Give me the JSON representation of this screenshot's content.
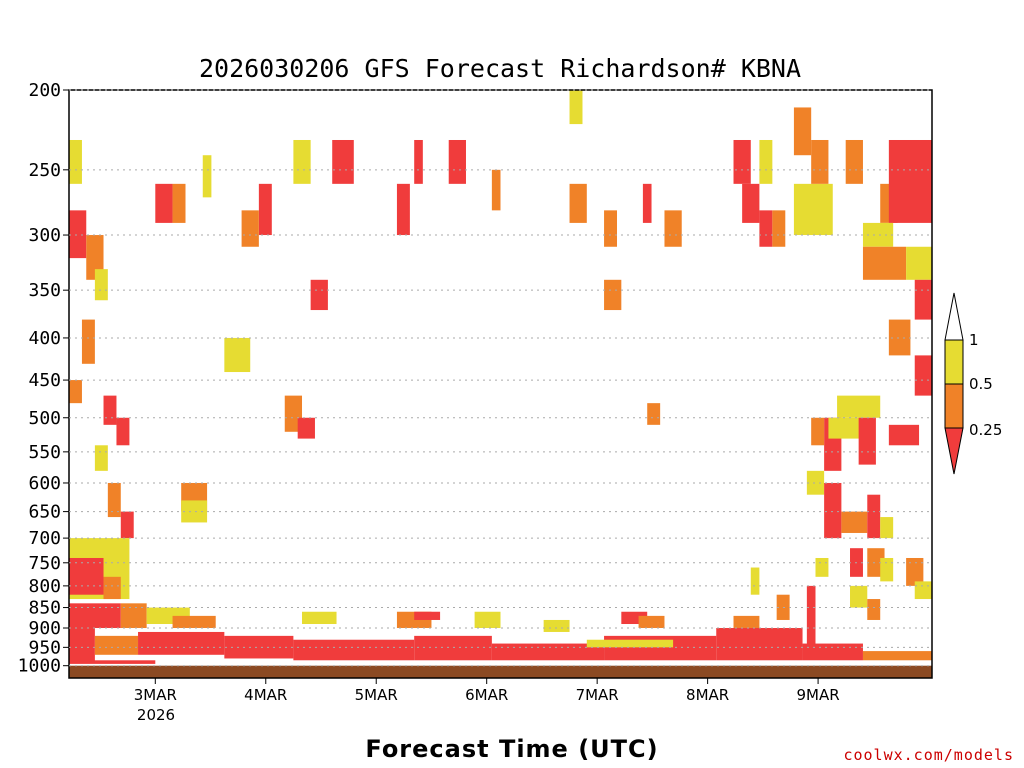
{
  "chart_data": {
    "type": "heatmap",
    "title": "2026030206 GFS Forecast Richardson# KBNA",
    "xlabel": "Forecast Time (UTC)",
    "ylabel": "",
    "y_scale": "log-pressure",
    "y_ticks": [
      "200",
      "250",
      "300",
      "350",
      "400",
      "450",
      "500",
      "550",
      "600",
      "650",
      "700",
      "750",
      "800",
      "850",
      "900",
      "950",
      "1000"
    ],
    "x_ticks": [
      "3MAR",
      "4MAR",
      "5MAR",
      "6MAR",
      "7MAR",
      "8MAR",
      "9MAR"
    ],
    "x_year_label": "2026",
    "levels": [
      "1",
      "0.5",
      "0.25"
    ],
    "colors": {
      "lt_0_25": "#f03c3c",
      "0_25_to_0_5": "#f08228",
      "0_5_to_1": "#e6dc32",
      "ground": "#8b4a23",
      "grid": "#aaaaaa"
    },
    "gridlines": "dotted",
    "legend_position": "right",
    "blocks": [
      {
        "x0": 0.0,
        "x1": 0.02,
        "p0": 280,
        "p1": 320,
        "cat": "lt_0_25"
      },
      {
        "x0": 0.0,
        "x1": 0.015,
        "p0": 230,
        "p1": 260,
        "cat": "0_5_to_1"
      },
      {
        "x0": 0.02,
        "x1": 0.04,
        "p0": 300,
        "p1": 340,
        "cat": "0_25_to_0_5"
      },
      {
        "x0": 0.03,
        "x1": 0.045,
        "p0": 330,
        "p1": 360,
        "cat": "0_5_to_1"
      },
      {
        "x0": 0.1,
        "x1": 0.12,
        "p0": 260,
        "p1": 290,
        "cat": "lt_0_25"
      },
      {
        "x0": 0.12,
        "x1": 0.135,
        "p0": 260,
        "p1": 290,
        "cat": "0_25_to_0_5"
      },
      {
        "x0": 0.155,
        "x1": 0.165,
        "p0": 240,
        "p1": 270,
        "cat": "0_5_to_1"
      },
      {
        "x0": 0.22,
        "x1": 0.235,
        "p0": 260,
        "p1": 300,
        "cat": "lt_0_25"
      },
      {
        "x0": 0.2,
        "x1": 0.22,
        "p0": 280,
        "p1": 310,
        "cat": "0_25_to_0_5"
      },
      {
        "x0": 0.26,
        "x1": 0.28,
        "p0": 230,
        "p1": 260,
        "cat": "0_5_to_1"
      },
      {
        "x0": 0.305,
        "x1": 0.33,
        "p0": 230,
        "p1": 260,
        "cat": "lt_0_25"
      },
      {
        "x0": 0.28,
        "x1": 0.3,
        "p0": 340,
        "p1": 370,
        "cat": "lt_0_25"
      },
      {
        "x0": 0.18,
        "x1": 0.21,
        "p0": 400,
        "p1": 440,
        "cat": "0_5_to_1"
      },
      {
        "x0": 0.25,
        "x1": 0.27,
        "p0": 470,
        "p1": 520,
        "cat": "0_25_to_0_5"
      },
      {
        "x0": 0.265,
        "x1": 0.285,
        "p0": 500,
        "p1": 530,
        "cat": "lt_0_25"
      },
      {
        "x0": 0.38,
        "x1": 0.395,
        "p0": 260,
        "p1": 300,
        "cat": "lt_0_25"
      },
      {
        "x0": 0.4,
        "x1": 0.41,
        "p0": 230,
        "p1": 260,
        "cat": "lt_0_25"
      },
      {
        "x0": 0.44,
        "x1": 0.46,
        "p0": 230,
        "p1": 260,
        "cat": "lt_0_25"
      },
      {
        "x0": 0.49,
        "x1": 0.5,
        "p0": 250,
        "p1": 280,
        "cat": "0_25_to_0_5"
      },
      {
        "x0": 0.58,
        "x1": 0.6,
        "p0": 260,
        "p1": 290,
        "cat": "0_25_to_0_5"
      },
      {
        "x0": 0.58,
        "x1": 0.595,
        "p0": 200,
        "p1": 220,
        "cat": "0_5_to_1"
      },
      {
        "x0": 0.62,
        "x1": 0.635,
        "p0": 280,
        "p1": 310,
        "cat": "0_25_to_0_5"
      },
      {
        "x0": 0.62,
        "x1": 0.64,
        "p0": 340,
        "p1": 370,
        "cat": "0_25_to_0_5"
      },
      {
        "x0": 0.665,
        "x1": 0.675,
        "p0": 260,
        "p1": 290,
        "cat": "lt_0_25"
      },
      {
        "x0": 0.69,
        "x1": 0.71,
        "p0": 280,
        "p1": 310,
        "cat": "0_25_to_0_5"
      },
      {
        "x0": 0.67,
        "x1": 0.685,
        "p0": 480,
        "p1": 510,
        "cat": "0_25_to_0_5"
      },
      {
        "x0": 0.77,
        "x1": 0.79,
        "p0": 230,
        "p1": 260,
        "cat": "lt_0_25"
      },
      {
        "x0": 0.78,
        "x1": 0.8,
        "p0": 260,
        "p1": 290,
        "cat": "lt_0_25"
      },
      {
        "x0": 0.8,
        "x1": 0.815,
        "p0": 280,
        "p1": 310,
        "cat": "lt_0_25"
      },
      {
        "x0": 0.815,
        "x1": 0.83,
        "p0": 280,
        "p1": 310,
        "cat": "0_25_to_0_5"
      },
      {
        "x0": 0.8,
        "x1": 0.815,
        "p0": 230,
        "p1": 260,
        "cat": "0_5_to_1"
      },
      {
        "x0": 0.84,
        "x1": 0.86,
        "p0": 210,
        "p1": 240,
        "cat": "0_25_to_0_5"
      },
      {
        "x0": 0.84,
        "x1": 0.885,
        "p0": 260,
        "p1": 300,
        "cat": "0_5_to_1"
      },
      {
        "x0": 0.86,
        "x1": 0.88,
        "p0": 230,
        "p1": 260,
        "cat": "0_25_to_0_5"
      },
      {
        "x0": 0.9,
        "x1": 0.92,
        "p0": 230,
        "p1": 260,
        "cat": "0_25_to_0_5"
      },
      {
        "x0": 0.94,
        "x1": 0.96,
        "p0": 260,
        "p1": 290,
        "cat": "0_25_to_0_5"
      },
      {
        "x0": 0.95,
        "x1": 1.0,
        "p0": 230,
        "p1": 290,
        "cat": "lt_0_25"
      },
      {
        "x0": 0.92,
        "x1": 0.955,
        "p0": 290,
        "p1": 310,
        "cat": "0_5_to_1"
      },
      {
        "x0": 0.92,
        "x1": 0.97,
        "p0": 310,
        "p1": 340,
        "cat": "0_25_to_0_5"
      },
      {
        "x0": 0.97,
        "x1": 1.0,
        "p0": 310,
        "p1": 340,
        "cat": "0_5_to_1"
      },
      {
        "x0": 0.98,
        "x1": 1.0,
        "p0": 340,
        "p1": 380,
        "cat": "lt_0_25"
      },
      {
        "x0": 0.95,
        "x1": 0.975,
        "p0": 380,
        "p1": 420,
        "cat": "0_25_to_0_5"
      },
      {
        "x0": 0.98,
        "x1": 1.0,
        "p0": 420,
        "p1": 470,
        "cat": "lt_0_25"
      },
      {
        "x0": 0.89,
        "x1": 0.94,
        "p0": 470,
        "p1": 500,
        "cat": "0_5_to_1"
      },
      {
        "x0": 0.95,
        "x1": 0.985,
        "p0": 510,
        "p1": 540,
        "cat": "lt_0_25"
      },
      {
        "x0": 0.875,
        "x1": 0.895,
        "p0": 500,
        "p1": 580,
        "cat": "lt_0_25"
      },
      {
        "x0": 0.88,
        "x1": 0.92,
        "p0": 500,
        "p1": 530,
        "cat": "0_5_to_1"
      },
      {
        "x0": 0.915,
        "x1": 0.935,
        "p0": 500,
        "p1": 570,
        "cat": "lt_0_25"
      },
      {
        "x0": 0.86,
        "x1": 0.875,
        "p0": 500,
        "p1": 540,
        "cat": "0_25_to_0_5"
      },
      {
        "x0": 0.855,
        "x1": 0.875,
        "p0": 580,
        "p1": 620,
        "cat": "0_5_to_1"
      },
      {
        "x0": 0.875,
        "x1": 0.895,
        "p0": 600,
        "p1": 700,
        "cat": "lt_0_25"
      },
      {
        "x0": 0.895,
        "x1": 0.925,
        "p0": 650,
        "p1": 690,
        "cat": "0_25_to_0_5"
      },
      {
        "x0": 0.925,
        "x1": 0.94,
        "p0": 620,
        "p1": 700,
        "cat": "lt_0_25"
      },
      {
        "x0": 0.94,
        "x1": 0.955,
        "p0": 660,
        "p1": 700,
        "cat": "0_5_to_1"
      },
      {
        "x0": 0.905,
        "x1": 0.92,
        "p0": 720,
        "p1": 780,
        "cat": "lt_0_25"
      },
      {
        "x0": 0.925,
        "x1": 0.945,
        "p0": 720,
        "p1": 780,
        "cat": "0_25_to_0_5"
      },
      {
        "x0": 0.94,
        "x1": 0.955,
        "p0": 740,
        "p1": 790,
        "cat": "0_5_to_1"
      },
      {
        "x0": 0.97,
        "x1": 0.99,
        "p0": 740,
        "p1": 800,
        "cat": "0_25_to_0_5"
      },
      {
        "x0": 0.98,
        "x1": 1.0,
        "p0": 790,
        "p1": 830,
        "cat": "0_5_to_1"
      },
      {
        "x0": 0.865,
        "x1": 0.88,
        "p0": 740,
        "p1": 780,
        "cat": "0_5_to_1"
      },
      {
        "x0": 0.855,
        "x1": 0.865,
        "p0": 800,
        "p1": 960,
        "cat": "lt_0_25"
      },
      {
        "x0": 0.905,
        "x1": 0.925,
        "p0": 800,
        "p1": 850,
        "cat": "0_5_to_1"
      },
      {
        "x0": 0.925,
        "x1": 0.94,
        "p0": 830,
        "p1": 880,
        "cat": "0_25_to_0_5"
      },
      {
        "x0": 0.79,
        "x1": 0.8,
        "p0": 760,
        "p1": 820,
        "cat": "0_5_to_1"
      },
      {
        "x0": 0.82,
        "x1": 0.835,
        "p0": 820,
        "p1": 880,
        "cat": "0_25_to_0_5"
      },
      {
        "x0": 0.0,
        "x1": 0.015,
        "p0": 450,
        "p1": 480,
        "cat": "0_25_to_0_5"
      },
      {
        "x0": 0.015,
        "x1": 0.03,
        "p0": 380,
        "p1": 430,
        "cat": "0_25_to_0_5"
      },
      {
        "x0": 0.04,
        "x1": 0.055,
        "p0": 470,
        "p1": 510,
        "cat": "lt_0_25"
      },
      {
        "x0": 0.055,
        "x1": 0.07,
        "p0": 500,
        "p1": 540,
        "cat": "lt_0_25"
      },
      {
        "x0": 0.03,
        "x1": 0.045,
        "p0": 540,
        "p1": 580,
        "cat": "0_5_to_1"
      },
      {
        "x0": 0.045,
        "x1": 0.06,
        "p0": 600,
        "p1": 660,
        "cat": "0_25_to_0_5"
      },
      {
        "x0": 0.06,
        "x1": 0.075,
        "p0": 650,
        "p1": 700,
        "cat": "lt_0_25"
      },
      {
        "x0": 0.13,
        "x1": 0.16,
        "p0": 600,
        "p1": 650,
        "cat": "0_25_to_0_5"
      },
      {
        "x0": 0.13,
        "x1": 0.16,
        "p0": 630,
        "p1": 670,
        "cat": "0_5_to_1"
      },
      {
        "x0": 0.0,
        "x1": 0.07,
        "p0": 700,
        "p1": 830,
        "cat": "0_5_to_1"
      },
      {
        "x0": 0.0,
        "x1": 0.04,
        "p0": 740,
        "p1": 820,
        "cat": "lt_0_25"
      },
      {
        "x0": 0.04,
        "x1": 0.06,
        "p0": 780,
        "p1": 830,
        "cat": "0_25_to_0_5"
      },
      {
        "x0": 0.0,
        "x1": 0.06,
        "p0": 840,
        "p1": 900,
        "cat": "lt_0_25"
      },
      {
        "x0": 0.06,
        "x1": 0.09,
        "p0": 840,
        "p1": 900,
        "cat": "0_25_to_0_5"
      },
      {
        "x0": 0.09,
        "x1": 0.14,
        "p0": 850,
        "p1": 890,
        "cat": "0_5_to_1"
      },
      {
        "x0": 0.12,
        "x1": 0.17,
        "p0": 870,
        "p1": 900,
        "cat": "0_25_to_0_5"
      },
      {
        "x0": 0.27,
        "x1": 0.31,
        "p0": 860,
        "p1": 890,
        "cat": "0_5_to_1"
      },
      {
        "x0": 0.38,
        "x1": 0.42,
        "p0": 860,
        "p1": 900,
        "cat": "0_25_to_0_5"
      },
      {
        "x0": 0.4,
        "x1": 0.43,
        "p0": 860,
        "p1": 880,
        "cat": "lt_0_25"
      },
      {
        "x0": 0.47,
        "x1": 0.5,
        "p0": 860,
        "p1": 900,
        "cat": "0_5_to_1"
      },
      {
        "x0": 0.55,
        "x1": 0.58,
        "p0": 880,
        "p1": 910,
        "cat": "0_5_to_1"
      },
      {
        "x0": 0.64,
        "x1": 0.67,
        "p0": 860,
        "p1": 890,
        "cat": "lt_0_25"
      },
      {
        "x0": 0.66,
        "x1": 0.69,
        "p0": 870,
        "p1": 900,
        "cat": "0_25_to_0_5"
      },
      {
        "x0": 0.77,
        "x1": 0.8,
        "p0": 870,
        "p1": 900,
        "cat": "0_25_to_0_5"
      },
      {
        "x0": 0.0,
        "x1": 0.03,
        "p0": 900,
        "p1": 990,
        "cat": "lt_0_25"
      },
      {
        "x0": 0.03,
        "x1": 0.08,
        "p0": 920,
        "p1": 970,
        "cat": "0_25_to_0_5"
      },
      {
        "x0": 0.08,
        "x1": 0.18,
        "p0": 910,
        "p1": 970,
        "cat": "lt_0_25"
      },
      {
        "x0": 0.18,
        "x1": 0.26,
        "p0": 920,
        "p1": 980,
        "cat": "lt_0_25"
      },
      {
        "x0": 0.26,
        "x1": 0.4,
        "p0": 930,
        "p1": 985,
        "cat": "lt_0_25"
      },
      {
        "x0": 0.4,
        "x1": 0.49,
        "p0": 920,
        "p1": 985,
        "cat": "lt_0_25"
      },
      {
        "x0": 0.49,
        "x1": 0.62,
        "p0": 940,
        "p1": 985,
        "cat": "lt_0_25"
      },
      {
        "x0": 0.62,
        "x1": 0.75,
        "p0": 920,
        "p1": 985,
        "cat": "lt_0_25"
      },
      {
        "x0": 0.75,
        "x1": 0.85,
        "p0": 900,
        "p1": 985,
        "cat": "lt_0_25"
      },
      {
        "x0": 0.85,
        "x1": 0.92,
        "p0": 940,
        "p1": 985,
        "cat": "lt_0_25"
      },
      {
        "x0": 0.92,
        "x1": 1.0,
        "p0": 960,
        "p1": 985,
        "cat": "0_25_to_0_5"
      },
      {
        "x0": 0.0,
        "x1": 0.1,
        "p0": 985,
        "p1": 995,
        "cat": "lt_0_25"
      },
      {
        "x0": 0.6,
        "x1": 0.7,
        "p0": 930,
        "p1": 950,
        "cat": "0_5_to_1"
      }
    ]
  },
  "credit": "coolwx.com/models"
}
